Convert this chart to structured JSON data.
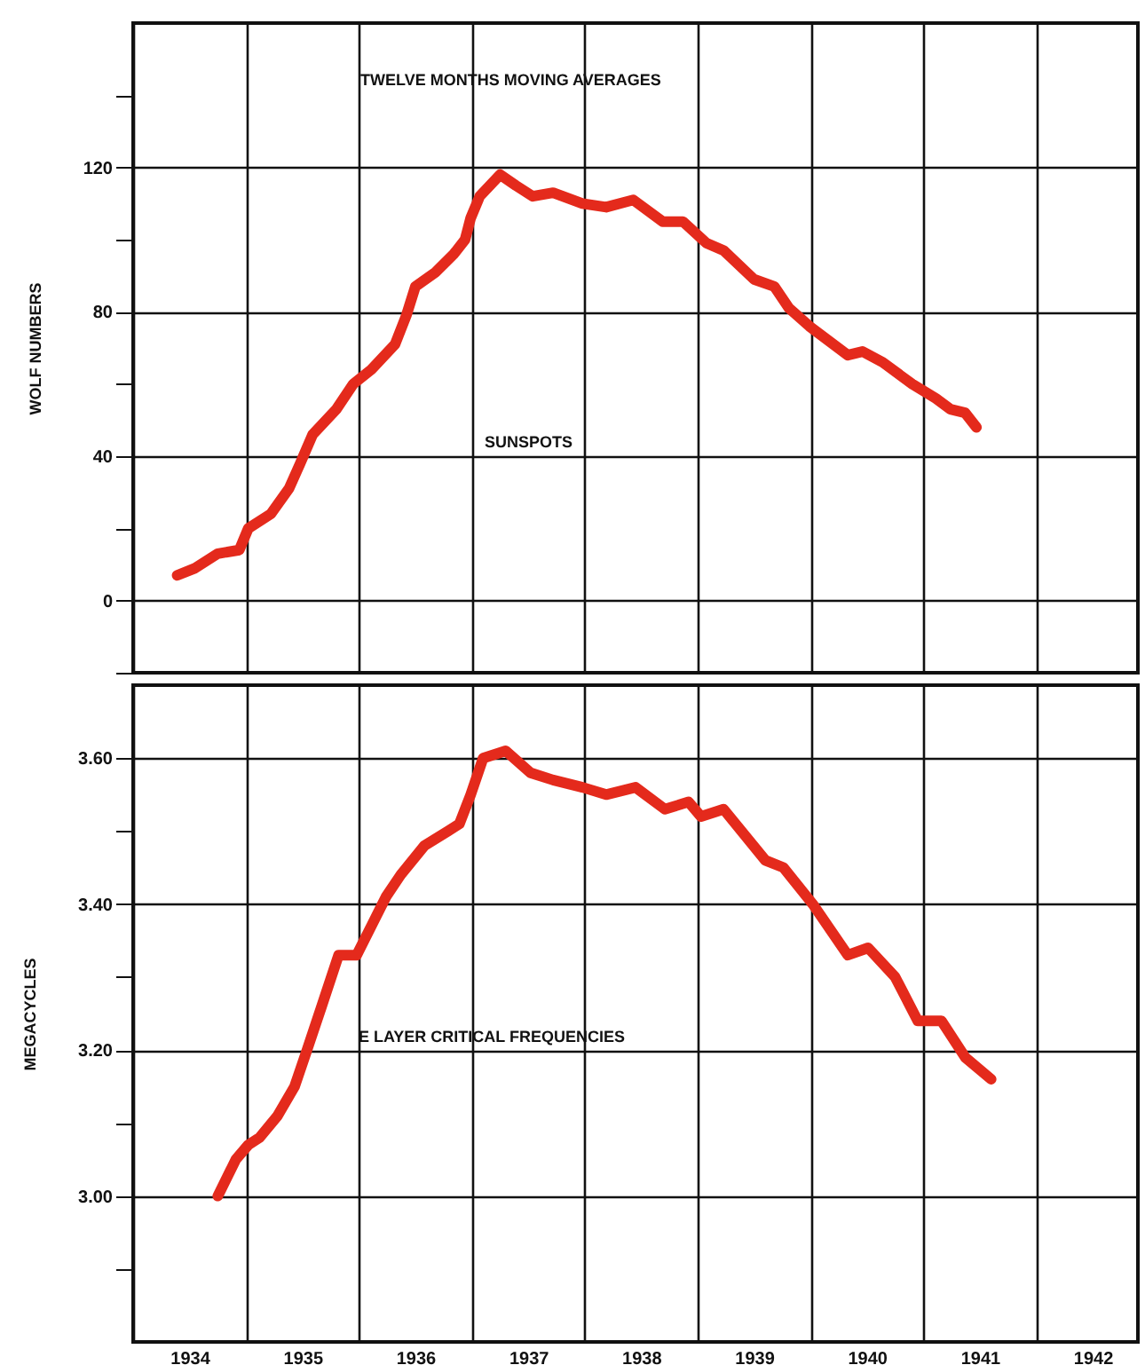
{
  "chart_data": [
    {
      "type": "line",
      "annotations": [
        "TWELVE MONTHS MOVING AVERAGES"
      ],
      "ylabel": "WOLF NUMBERS",
      "series": [
        {
          "name": "SUNSPOTS",
          "color": "#e42a1c",
          "x": [
            1934.39,
            1934.55,
            1934.75,
            1934.94,
            1935.02,
            1935.22,
            1935.38,
            1935.48,
            1935.59,
            1935.8,
            1935.95,
            1936.11,
            1936.32,
            1936.42,
            1936.5,
            1936.68,
            1936.84,
            1936.94,
            1936.99,
            1937.07,
            1937.25,
            1937.39,
            1937.54,
            1937.72,
            1937.98,
            1938.19,
            1938.43,
            1938.69,
            1938.87,
            1939.08,
            1939.23,
            1939.5,
            1939.68,
            1939.81,
            1939.99,
            1940.33,
            1940.46,
            1940.64,
            1940.9,
            1941.11,
            1941.24,
            1941.37,
            1941.47
          ],
          "values": [
            7,
            9,
            13,
            14,
            20,
            24,
            31,
            38,
            46,
            53,
            60,
            64,
            71,
            79,
            87,
            91,
            96,
            100,
            106,
            112,
            118,
            115,
            112,
            113,
            110,
            109,
            111,
            105,
            105,
            99,
            97,
            89,
            87,
            81,
            76,
            68,
            69,
            66,
            60,
            56,
            53,
            52,
            48
          ]
        }
      ],
      "xlim": [
        1934,
        1942.9
      ],
      "xticks": [
        {
          "value": 1934,
          "label": null
        },
        {
          "value": 1935,
          "label": null
        },
        {
          "value": 1936,
          "label": null
        },
        {
          "value": 1937,
          "label": null
        },
        {
          "value": 1938,
          "label": null
        },
        {
          "value": 1939,
          "label": null
        },
        {
          "value": 1940,
          "label": null
        },
        {
          "value": 1941,
          "label": null
        },
        {
          "value": 1942,
          "label": null
        }
      ],
      "ylim": [
        -20,
        160
      ],
      "yticks": [
        {
          "value": -20,
          "label": null
        },
        0,
        {
          "value": 20,
          "label": null
        },
        40,
        {
          "value": 60,
          "label": null
        },
        80,
        {
          "value": 100,
          "label": null
        },
        120,
        {
          "value": 140,
          "label": null
        }
      ],
      "grid": true,
      "tick_labels": "y",
      "line_style": "solid",
      "marker": "none"
    },
    {
      "type": "line",
      "ylabel": "MEGACYCLES",
      "series": [
        {
          "name": "E LAYER CRITICAL FREQUENCIES",
          "color": "#e42a1c",
          "x": [
            1934.75,
            1934.91,
            1935.02,
            1935.12,
            1935.28,
            1935.43,
            1935.54,
            1935.67,
            1935.82,
            1935.98,
            1936.11,
            1936.24,
            1936.37,
            1936.58,
            1936.79,
            1936.89,
            1936.99,
            1937.1,
            1937.3,
            1937.52,
            1937.72,
            1937.98,
            1938.19,
            1938.45,
            1938.71,
            1938.92,
            1939.03,
            1939.23,
            1939.6,
            1939.76,
            1940.02,
            1940.33,
            1940.51,
            1940.75,
            1940.95,
            1941.16,
            1941.37,
            1941.6
          ],
          "values": [
            3.0,
            3.05,
            3.07,
            3.08,
            3.11,
            3.15,
            3.2,
            3.26,
            3.33,
            3.33,
            3.37,
            3.41,
            3.44,
            3.48,
            3.5,
            3.51,
            3.55,
            3.6,
            3.61,
            3.58,
            3.57,
            3.56,
            3.55,
            3.56,
            3.53,
            3.54,
            3.52,
            3.53,
            3.46,
            3.45,
            3.4,
            3.33,
            3.34,
            3.3,
            3.24,
            3.24,
            3.19,
            3.16
          ]
        }
      ],
      "xlim": [
        1934,
        1942.9
      ],
      "xticks": [
        {
          "value": 1934,
          "label": null
        },
        {
          "value": 1934.5,
          "label": "1934"
        },
        {
          "value": 1935,
          "label": null
        },
        {
          "value": 1935.5,
          "label": "1935"
        },
        {
          "value": 1936,
          "label": null
        },
        {
          "value": 1936.5,
          "label": "1936"
        },
        {
          "value": 1937,
          "label": null
        },
        {
          "value": 1937.5,
          "label": "1937"
        },
        {
          "value": 1938,
          "label": null
        },
        {
          "value": 1938.5,
          "label": "1938"
        },
        {
          "value": 1939,
          "label": null
        },
        {
          "value": 1939.5,
          "label": "1939"
        },
        {
          "value": 1940,
          "label": null
        },
        {
          "value": 1940.5,
          "label": "1940"
        },
        {
          "value": 1941,
          "label": null
        },
        {
          "value": 1941.5,
          "label": "1941"
        },
        {
          "value": 1942,
          "label": null
        },
        {
          "value": 1942.5,
          "label": "1942"
        }
      ],
      "ylim": [
        2.8,
        3.7
      ],
      "yticks": [
        {
          "value": 2.9,
          "label": null
        },
        {
          "value": 3.0,
          "label": "3.00"
        },
        {
          "value": 3.1,
          "label": null
        },
        {
          "value": 3.2,
          "label": "3.20"
        },
        {
          "value": 3.3,
          "label": null
        },
        {
          "value": 3.4,
          "label": "3.40"
        },
        {
          "value": 3.5,
          "label": null
        },
        {
          "value": 3.6,
          "label": "3.60"
        }
      ],
      "grid": true,
      "line_style": "solid",
      "marker": "none"
    }
  ]
}
